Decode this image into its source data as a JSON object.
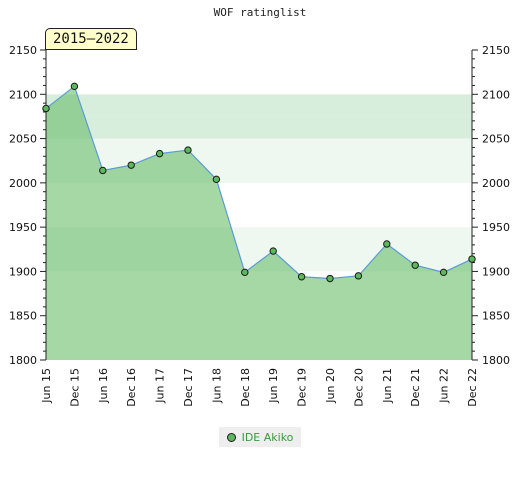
{
  "chart_data": {
    "type": "area",
    "title": "WOF ratinglist",
    "period_label": "2015–2022",
    "categories": [
      "Jun 15",
      "Dec 15",
      "Jun 16",
      "Dec 16",
      "Jun 17",
      "Dec 17",
      "Jun 18",
      "Dec 18",
      "Jun 19",
      "Dec 19",
      "Jun 20",
      "Dec 20",
      "Jun 21",
      "Dec 21",
      "Jun 22",
      "Dec 22"
    ],
    "series": [
      {
        "name": "IDE Akiko",
        "values": [
          2084,
          2109,
          2014,
          2020,
          2033,
          2037,
          2004,
          1899,
          1923,
          1894,
          1892,
          1895,
          1931,
          1907,
          1899,
          1914
        ]
      }
    ],
    "ylim": [
      1800,
      2150
    ],
    "yticks": [
      1800,
      1850,
      1900,
      1950,
      2000,
      2050,
      2100,
      2150
    ],
    "xlabel": "",
    "ylabel": "",
    "legend_position": "bottom-center",
    "colors": {
      "line": "#5b9bd5",
      "fill": "#5cb85c",
      "marker": "#5cb85c"
    }
  }
}
